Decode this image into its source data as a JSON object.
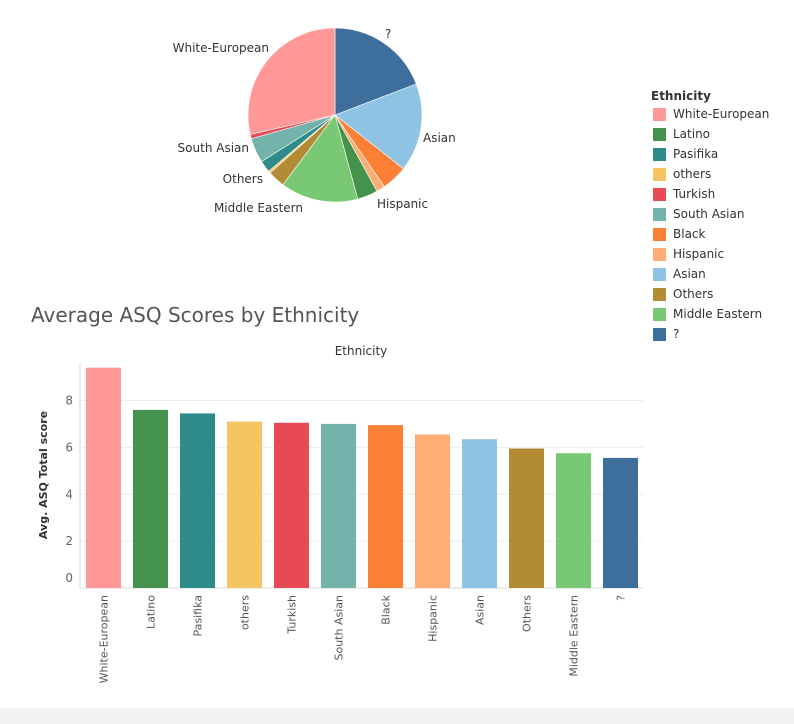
{
  "pie_chart": {
    "legend_title": "Ethnicity",
    "legend": [
      {
        "label": "White-European",
        "color": "#ff9896"
      },
      {
        "label": "Latino",
        "color": "#44924b"
      },
      {
        "label": "Pasifika",
        "color": "#2e8b89"
      },
      {
        "label": "others",
        "color": "#f5c564"
      },
      {
        "label": "Turkish",
        "color": "#e74a52"
      },
      {
        "label": "South Asian",
        "color": "#74b3ab"
      },
      {
        "label": "Black",
        "color": "#fb7f35"
      },
      {
        "label": "Hispanic",
        "color": "#feae74"
      },
      {
        "label": "Asian",
        "color": "#8fc3e3"
      },
      {
        "label": "Others",
        "color": "#b38b34"
      },
      {
        "label": "Middle Eastern",
        "color": "#78c874"
      },
      {
        "label": "?",
        "color": "#3e6f9c"
      }
    ]
  },
  "bar_chart": {
    "title": "Average ASQ Scores by Ethnicity",
    "header": "Ethnicity",
    "ylabel": "Avg. ASQ Total score"
  },
  "chart_data": [
    {
      "type": "pie",
      "slices": [
        {
          "label": "?",
          "value": 19.2,
          "color": "#3e6f9c"
        },
        {
          "label": "Asian",
          "value": 16.4,
          "color": "#8fc3e3"
        },
        {
          "label": "Black",
          "value": 4.8,
          "color": "#fb7f35"
        },
        {
          "label": "Hispanic",
          "value": 1.6,
          "color": "#feae74"
        },
        {
          "label": "Latino",
          "value": 3.8,
          "color": "#44924b"
        },
        {
          "label": "Middle Eastern",
          "value": 14.4,
          "color": "#78c874"
        },
        {
          "label": "Others",
          "value": 3.2,
          "color": "#b38b34"
        },
        {
          "label": "others",
          "value": 0.4,
          "color": "#f5c564"
        },
        {
          "label": "Pasifika",
          "value": 2.2,
          "color": "#2e8b89"
        },
        {
          "label": "South Asian",
          "value": 4.6,
          "color": "#74b3ab"
        },
        {
          "label": "Turkish",
          "value": 0.8,
          "color": "#e74a52"
        },
        {
          "label": "White-European",
          "value": 28.6,
          "color": "#ff9896"
        }
      ],
      "labels_shown": [
        "?",
        "Asian",
        "Hispanic",
        "Middle Eastern",
        "Others",
        "South Asian",
        "White-European"
      ]
    },
    {
      "type": "bar",
      "title": "Average ASQ Scores by Ethnicity",
      "xlabel": "Ethnicity",
      "ylabel": "Avg. ASQ Total score",
      "categories": [
        "White-European",
        "Latino",
        "Pasifika",
        "others",
        "Turkish",
        "South Asian",
        "Black",
        "Hispanic",
        "Asian",
        "Others",
        "Middle Eastern",
        "?"
      ],
      "values": [
        9.4,
        7.6,
        7.45,
        7.1,
        7.05,
        7.0,
        6.95,
        6.55,
        6.35,
        5.95,
        5.75,
        5.55
      ],
      "colors": [
        "#ff9896",
        "#44924b",
        "#2e8b89",
        "#f5c564",
        "#e74a52",
        "#74b3ab",
        "#fb7f35",
        "#feae74",
        "#8fc3e3",
        "#b38b34",
        "#78c874",
        "#3e6f9c"
      ],
      "yticks": [
        0,
        2,
        4,
        6,
        8
      ],
      "ylim": [
        0,
        9.6
      ],
      "grid": true
    }
  ]
}
